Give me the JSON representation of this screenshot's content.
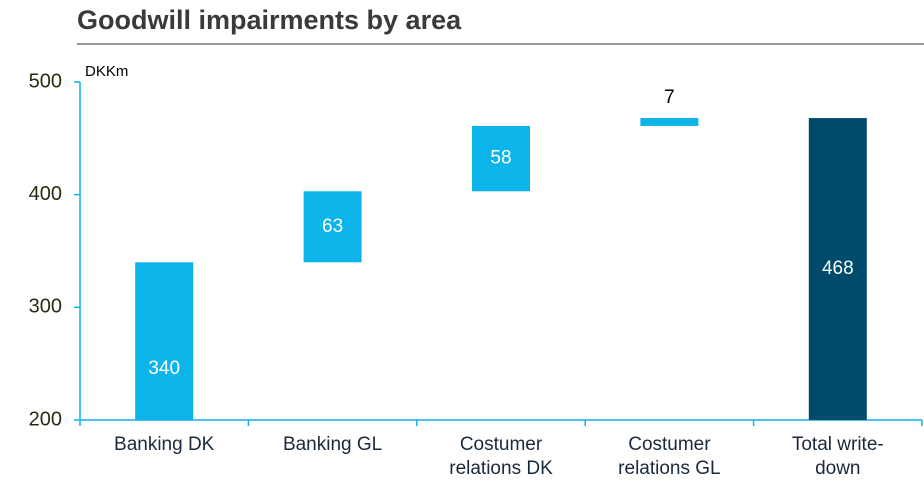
{
  "chart_data": {
    "type": "waterfall",
    "title": "Goodwill impairments by area",
    "unit_label": "DKKm",
    "categories": [
      [
        "Banking DK"
      ],
      [
        "Banking GL"
      ],
      [
        "Costumer",
        "relations DK"
      ],
      [
        "Costumer",
        "relations GL"
      ],
      [
        "Total write-",
        "down"
      ]
    ],
    "values": [
      340,
      63,
      58,
      7,
      468
    ],
    "is_total": [
      false,
      false,
      false,
      false,
      true
    ],
    "color": "#0db4ea",
    "total_color": "#004b6b",
    "ylim": [
      200,
      500
    ],
    "yticks": [
      200,
      300,
      400,
      500
    ]
  }
}
